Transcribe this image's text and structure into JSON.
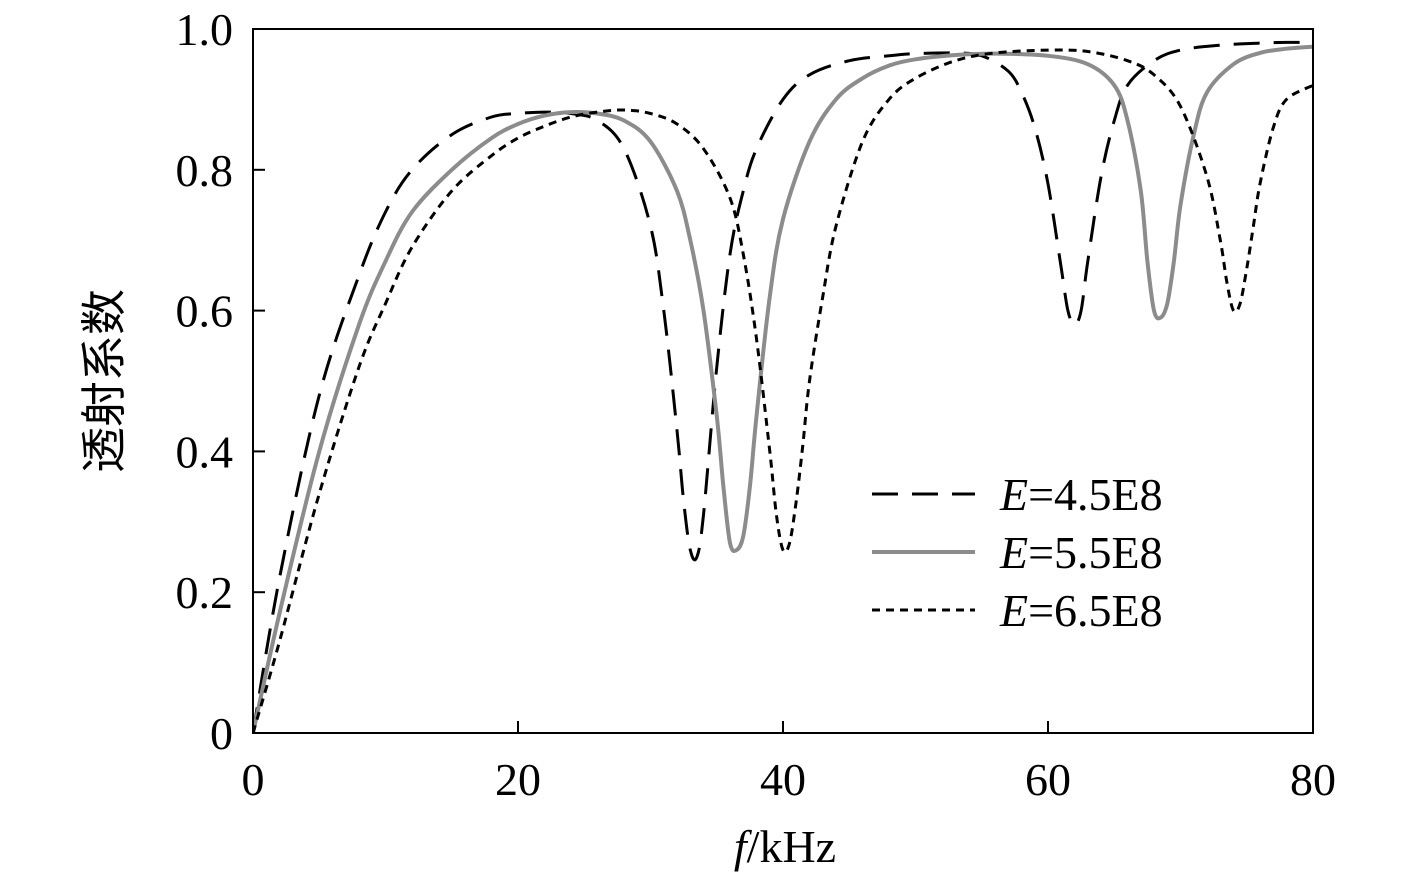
{
  "chart_data": {
    "type": "line",
    "title": "",
    "xlabel_italic": "f",
    "xlabel_rest": "/kHz",
    "ylabel": "透射系数",
    "xlim": [
      0,
      80
    ],
    "ylim": [
      0,
      1.0
    ],
    "xticks": [
      0,
      20,
      40,
      60,
      80
    ],
    "yticks": [
      0,
      0.2,
      0.4,
      0.6,
      0.8,
      1.0
    ],
    "xtick_labels": [
      "0",
      "20",
      "40",
      "60",
      "80"
    ],
    "ytick_labels": [
      "0",
      "0.2",
      "0.4",
      "0.6",
      "0.8",
      "1.0"
    ],
    "grid": false,
    "legend_position": "center-right",
    "series": [
      {
        "name_italic": "E",
        "name_rest": "=4.5E8",
        "style": "long-dash",
        "color": "#000000",
        "x": [
          0,
          2,
          5,
          8,
          10,
          12,
          15,
          18,
          20,
          22,
          24,
          26,
          28,
          30,
          31,
          32,
          32.5,
          33,
          33.5,
          34,
          35,
          36,
          37,
          38,
          40,
          42,
          45,
          48,
          50,
          53,
          55,
          57,
          58,
          59,
          60,
          61,
          61.5,
          62,
          62.5,
          63,
          64,
          65,
          66,
          68,
          70,
          73,
          76,
          78,
          80
        ],
        "y": [
          0,
          0.22,
          0.48,
          0.65,
          0.74,
          0.8,
          0.85,
          0.875,
          0.88,
          0.882,
          0.88,
          0.87,
          0.83,
          0.72,
          0.6,
          0.43,
          0.33,
          0.26,
          0.25,
          0.31,
          0.52,
          0.68,
          0.77,
          0.83,
          0.9,
          0.935,
          0.955,
          0.962,
          0.965,
          0.966,
          0.962,
          0.94,
          0.91,
          0.86,
          0.78,
          0.66,
          0.6,
          0.58,
          0.6,
          0.67,
          0.79,
          0.87,
          0.92,
          0.955,
          0.97,
          0.977,
          0.98,
          0.981,
          0.981
        ]
      },
      {
        "name_italic": "E",
        "name_rest": "=5.5E8",
        "style": "solid",
        "color": "#8c8c8c",
        "x": [
          0,
          2,
          5,
          8,
          10,
          12,
          15,
          18,
          20,
          22,
          24,
          26,
          28,
          30,
          32,
          33,
          34,
          35,
          35.5,
          36,
          36.5,
          37,
          37.5,
          38,
          39,
          40,
          42,
          44,
          46,
          48,
          50,
          53,
          56,
          60,
          63,
          65,
          66,
          67,
          67.5,
          68,
          68.5,
          69,
          69.5,
          70,
          71,
          72,
          74,
          76,
          78,
          80
        ],
        "y": [
          0,
          0.17,
          0.4,
          0.58,
          0.67,
          0.74,
          0.8,
          0.845,
          0.865,
          0.877,
          0.882,
          0.88,
          0.87,
          0.84,
          0.77,
          0.7,
          0.6,
          0.45,
          0.35,
          0.27,
          0.26,
          0.28,
          0.35,
          0.45,
          0.62,
          0.73,
          0.84,
          0.9,
          0.93,
          0.948,
          0.957,
          0.963,
          0.965,
          0.962,
          0.95,
          0.92,
          0.87,
          0.77,
          0.67,
          0.6,
          0.59,
          0.61,
          0.67,
          0.75,
          0.85,
          0.91,
          0.95,
          0.966,
          0.972,
          0.975
        ]
      },
      {
        "name_italic": "E",
        "name_rest": "=6.5E8",
        "style": "short-dash",
        "color": "#000000",
        "x": [
          0,
          2,
          5,
          8,
          10,
          12,
          15,
          18,
          20,
          22,
          24,
          26,
          28,
          30,
          32,
          34,
          36,
          37,
          38,
          39,
          39.5,
          40,
          40.5,
          41,
          41.5,
          42,
          43,
          44,
          46,
          48,
          50,
          53,
          56,
          60,
          63,
          66,
          68,
          70,
          72,
          73,
          73.5,
          74,
          74.5,
          75,
          75.5,
          76,
          77,
          78,
          80
        ],
        "y": [
          0,
          0.13,
          0.34,
          0.52,
          0.61,
          0.69,
          0.77,
          0.82,
          0.845,
          0.862,
          0.875,
          0.882,
          0.885,
          0.88,
          0.865,
          0.83,
          0.76,
          0.68,
          0.56,
          0.4,
          0.31,
          0.26,
          0.27,
          0.33,
          0.41,
          0.5,
          0.62,
          0.72,
          0.84,
          0.9,
          0.93,
          0.955,
          0.966,
          0.97,
          0.968,
          0.955,
          0.935,
          0.89,
          0.79,
          0.7,
          0.64,
          0.6,
          0.61,
          0.66,
          0.72,
          0.78,
          0.86,
          0.9,
          0.92
        ]
      }
    ]
  }
}
